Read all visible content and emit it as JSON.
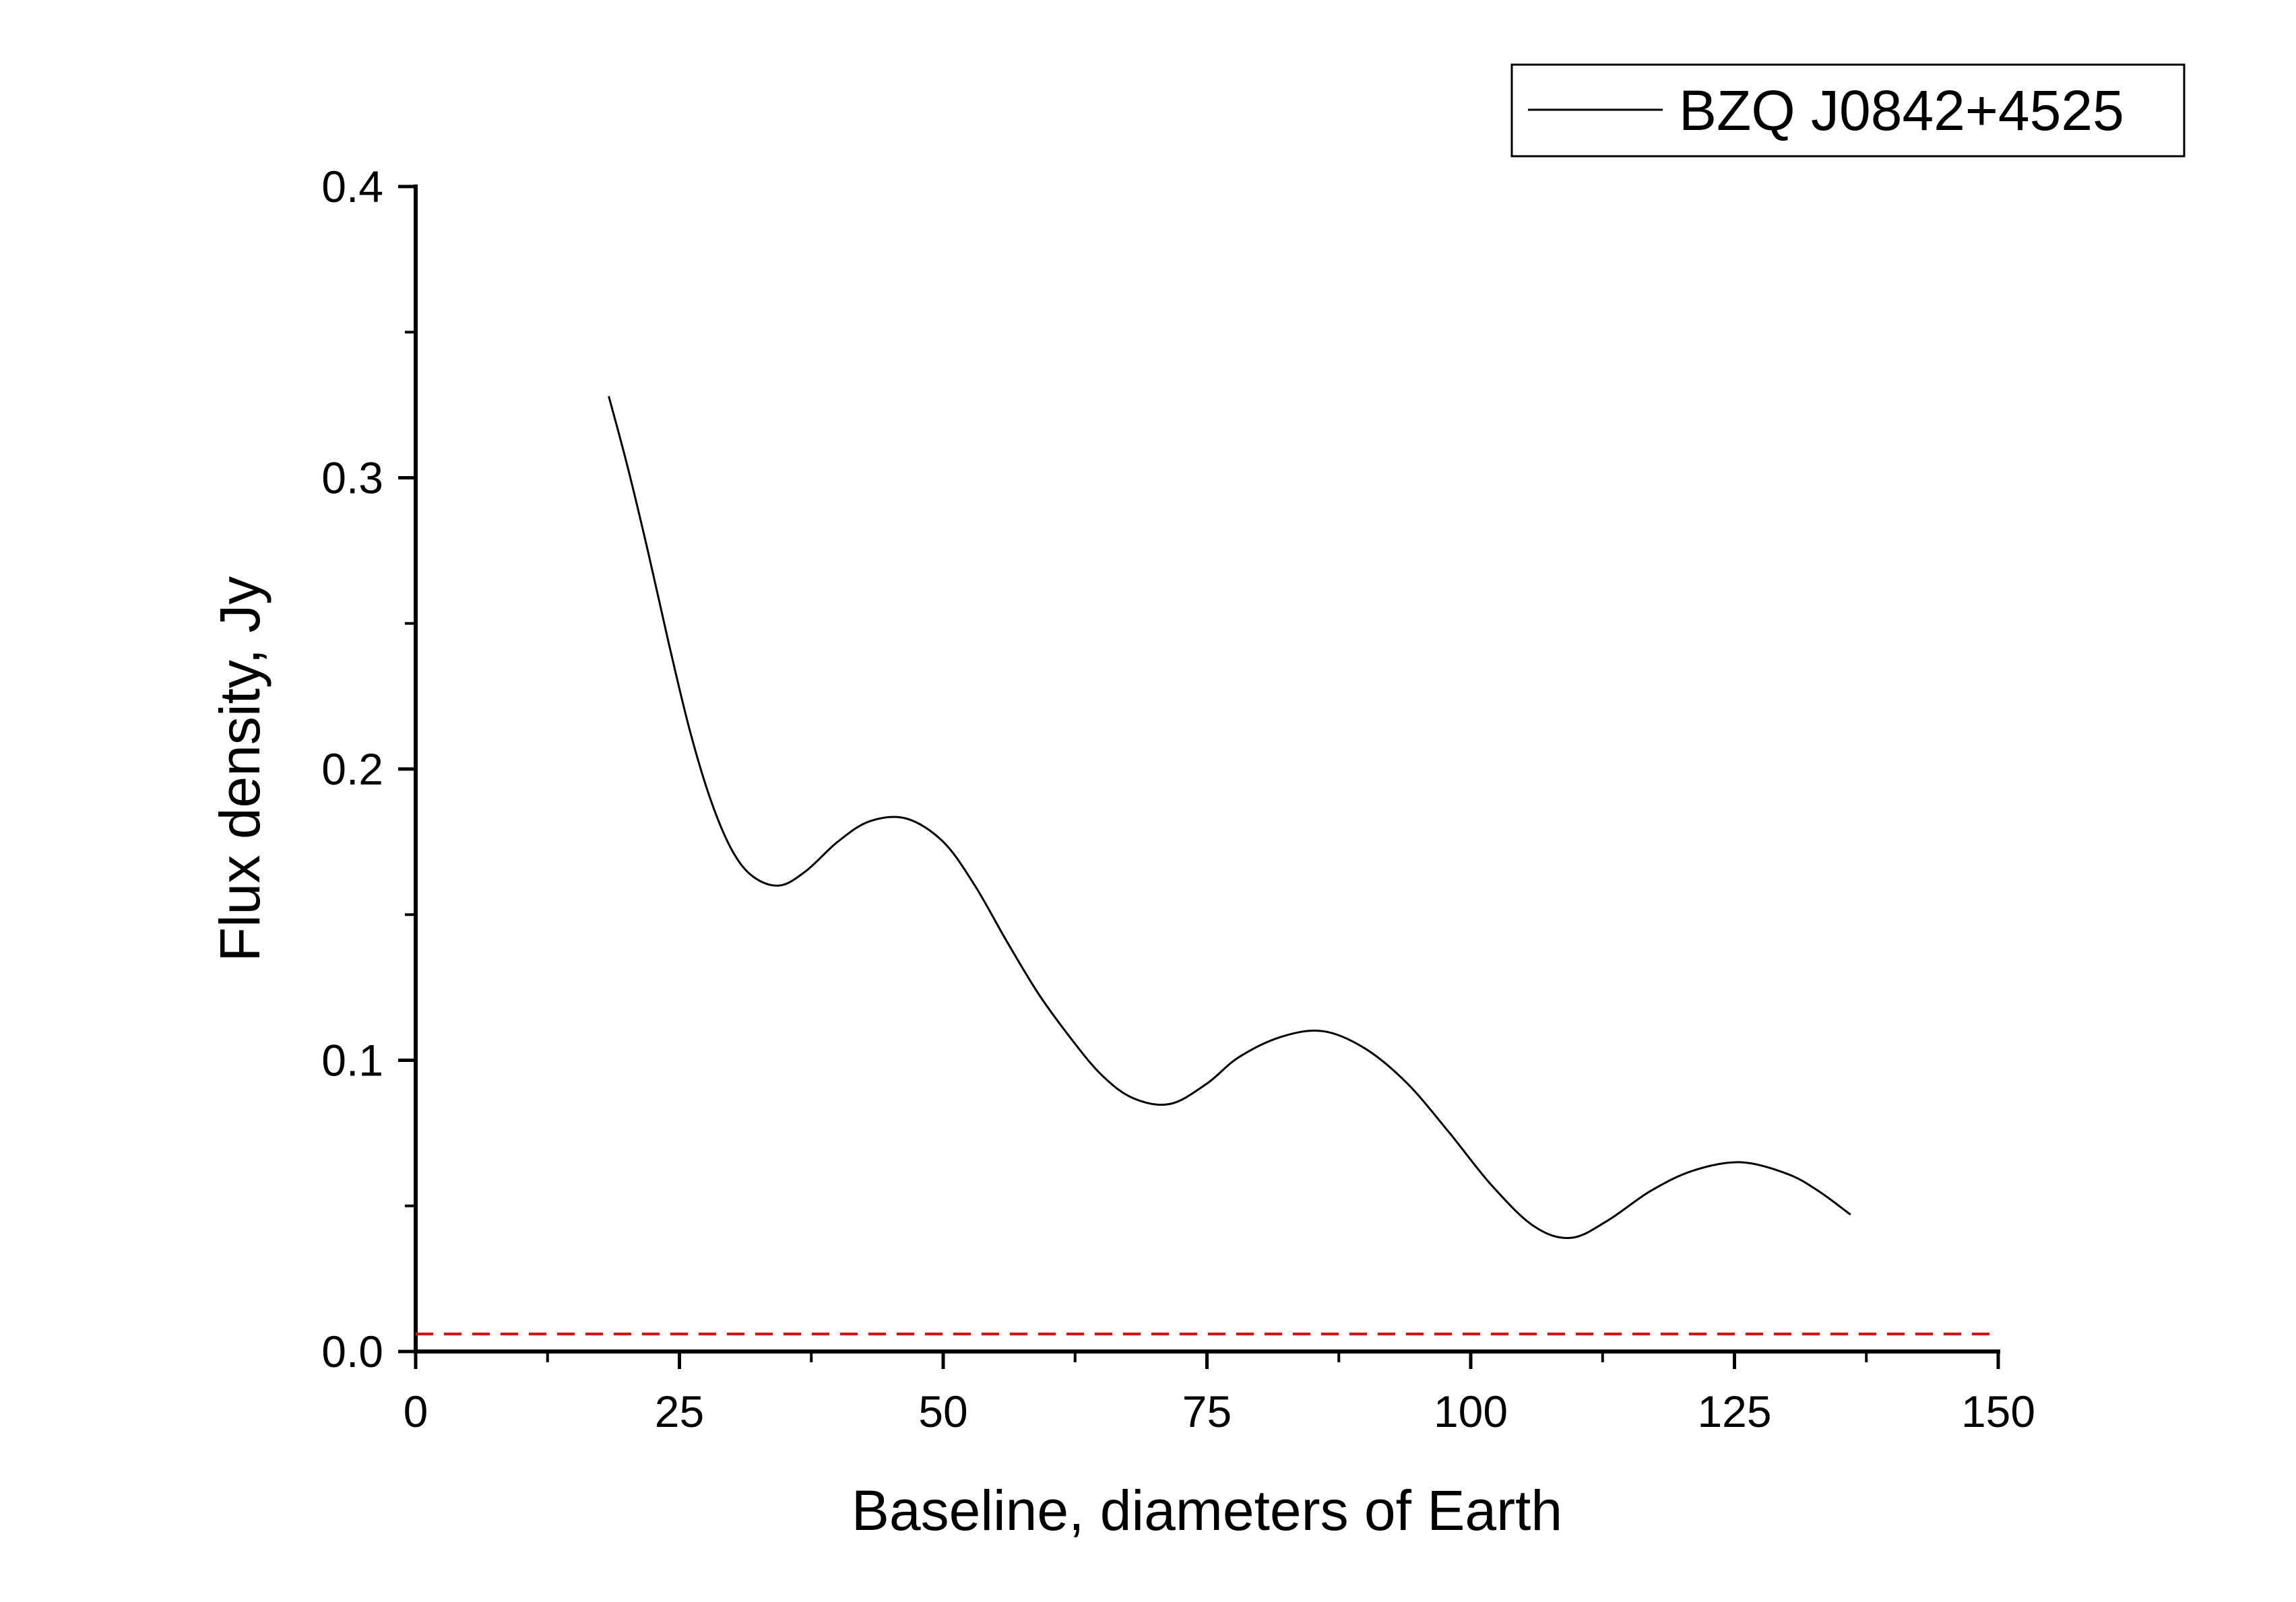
{
  "chart_data": {
    "type": "line",
    "title": "",
    "xlabel": "Baseline, diameters of Earth",
    "ylabel": "Flux density, Jy",
    "xlim": [
      0,
      150
    ],
    "ylim": [
      0,
      0.4
    ],
    "x_ticks": [
      0,
      25,
      50,
      75,
      100,
      125,
      150
    ],
    "x_tick_labels": [
      "0",
      "25",
      "50",
      "75",
      "100",
      "125",
      "150"
    ],
    "y_ticks": [
      0.0,
      0.1,
      0.2,
      0.3,
      0.4
    ],
    "y_tick_labels": [
      "0.0",
      "0.1",
      "0.2",
      "0.3",
      "0.4"
    ],
    "grid": false,
    "legend_position": "top-right",
    "series": [
      {
        "name": "BZQ J0842+4525",
        "color": "#000000",
        "style": "solid",
        "x": [
          18.3,
          20,
          22,
          24,
          26,
          28,
          30,
          32,
          34.5,
          37,
          40,
          43,
          46.5,
          50,
          53,
          56,
          59,
          62,
          65,
          68,
          71.5,
          75,
          78,
          82,
          86,
          90,
          94,
          98,
          102,
          106,
          109.5,
          113,
          117,
          121,
          125.5,
          130,
          133,
          136
        ],
        "y": [
          0.328,
          0.305,
          0.275,
          0.243,
          0.213,
          0.189,
          0.172,
          0.163,
          0.16,
          0.165,
          0.175,
          0.182,
          0.183,
          0.175,
          0.16,
          0.141,
          0.123,
          0.108,
          0.095,
          0.087,
          0.085,
          0.092,
          0.101,
          0.108,
          0.11,
          0.104,
          0.092,
          0.075,
          0.057,
          0.043,
          0.039,
          0.045,
          0.055,
          0.062,
          0.065,
          0.061,
          0.055,
          0.047
        ]
      },
      {
        "name": "",
        "color": "#ff0000",
        "style": "dashed",
        "x": [
          0,
          150
        ],
        "y": [
          0.006,
          0.006
        ]
      }
    ]
  }
}
